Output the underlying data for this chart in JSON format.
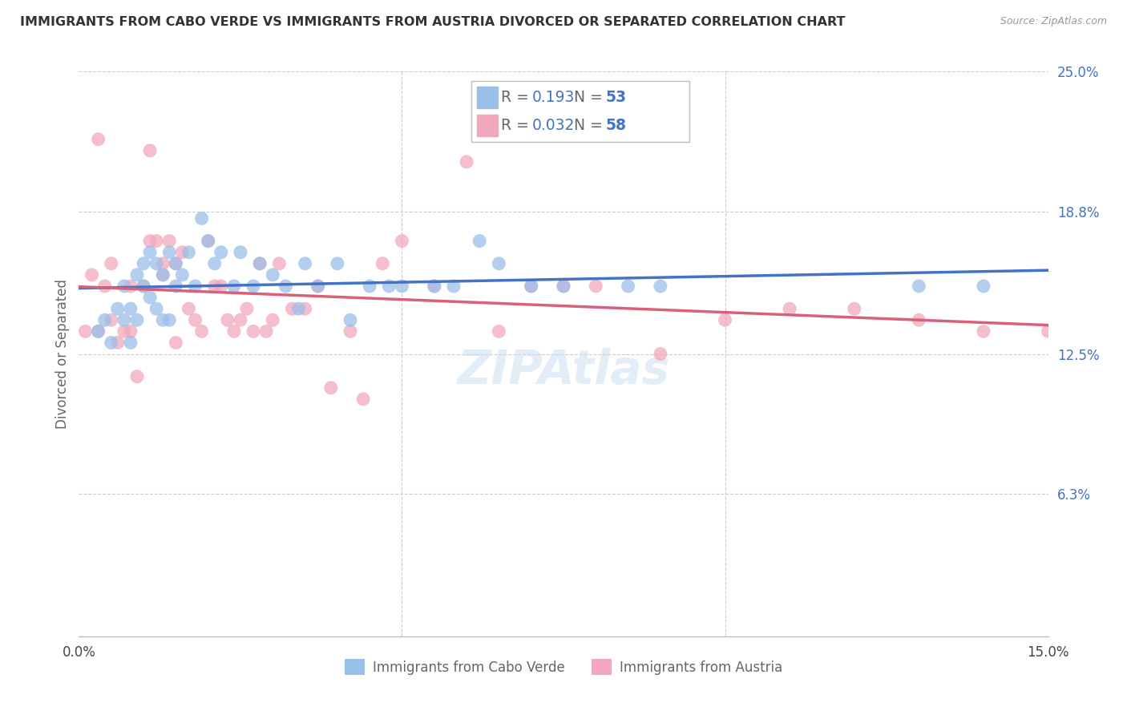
{
  "title": "IMMIGRANTS FROM CABO VERDE VS IMMIGRANTS FROM AUSTRIA DIVORCED OR SEPARATED CORRELATION CHART",
  "source": "Source: ZipAtlas.com",
  "ylabel": "Divorced or Separated",
  "xmin": 0.0,
  "xmax": 0.15,
  "ymin": 0.0,
  "ymax": 0.25,
  "ytick_vals": [
    0.063,
    0.125,
    0.188,
    0.25
  ],
  "ytick_labels": [
    "6.3%",
    "12.5%",
    "18.8%",
    "25.0%"
  ],
  "xtick_vals": [
    0.0,
    0.05,
    0.1,
    0.15
  ],
  "xtick_labels": [
    "0.0%",
    "",
    "",
    "15.0%"
  ],
  "cabo_verde_R": "0.193",
  "cabo_verde_N": "53",
  "austria_R": "0.032",
  "austria_N": "58",
  "cabo_verde_dot_color": "#9ABFE8",
  "austria_dot_color": "#F2A8BC",
  "cabo_verde_line_color": "#4472C4",
  "austria_line_color": "#D9607A",
  "legend_color": "#4472C4",
  "legend_label_cabo": "Immigrants from Cabo Verde",
  "legend_label_austria": "Immigrants from Austria",
  "watermark": "ZIPAtlas",
  "cabo_verde_x": [
    0.003,
    0.004,
    0.005,
    0.006,
    0.007,
    0.007,
    0.008,
    0.008,
    0.009,
    0.009,
    0.01,
    0.01,
    0.011,
    0.011,
    0.012,
    0.012,
    0.013,
    0.013,
    0.014,
    0.014,
    0.015,
    0.015,
    0.016,
    0.017,
    0.018,
    0.019,
    0.02,
    0.021,
    0.022,
    0.024,
    0.025,
    0.027,
    0.028,
    0.03,
    0.032,
    0.034,
    0.035,
    0.037,
    0.04,
    0.042,
    0.045,
    0.048,
    0.05,
    0.055,
    0.058,
    0.062,
    0.065,
    0.07,
    0.075,
    0.085,
    0.09,
    0.13,
    0.14
  ],
  "cabo_verde_y": [
    0.135,
    0.14,
    0.13,
    0.145,
    0.14,
    0.155,
    0.145,
    0.13,
    0.16,
    0.14,
    0.165,
    0.155,
    0.17,
    0.15,
    0.165,
    0.145,
    0.16,
    0.14,
    0.17,
    0.14,
    0.165,
    0.155,
    0.16,
    0.17,
    0.155,
    0.185,
    0.175,
    0.165,
    0.17,
    0.155,
    0.17,
    0.155,
    0.165,
    0.16,
    0.155,
    0.145,
    0.165,
    0.155,
    0.165,
    0.14,
    0.155,
    0.155,
    0.155,
    0.155,
    0.155,
    0.175,
    0.165,
    0.155,
    0.155,
    0.155,
    0.155,
    0.155,
    0.155
  ],
  "austria_x": [
    0.001,
    0.002,
    0.003,
    0.003,
    0.004,
    0.005,
    0.005,
    0.006,
    0.007,
    0.008,
    0.008,
    0.009,
    0.01,
    0.011,
    0.011,
    0.012,
    0.013,
    0.013,
    0.014,
    0.015,
    0.015,
    0.016,
    0.017,
    0.018,
    0.019,
    0.02,
    0.021,
    0.022,
    0.023,
    0.024,
    0.025,
    0.026,
    0.027,
    0.028,
    0.029,
    0.03,
    0.031,
    0.033,
    0.035,
    0.037,
    0.039,
    0.042,
    0.044,
    0.047,
    0.05,
    0.055,
    0.06,
    0.065,
    0.07,
    0.075,
    0.08,
    0.09,
    0.1,
    0.11,
    0.12,
    0.13,
    0.14,
    0.15
  ],
  "austria_y": [
    0.135,
    0.16,
    0.135,
    0.22,
    0.155,
    0.14,
    0.165,
    0.13,
    0.135,
    0.135,
    0.155,
    0.115,
    0.155,
    0.215,
    0.175,
    0.175,
    0.16,
    0.165,
    0.175,
    0.13,
    0.165,
    0.17,
    0.145,
    0.14,
    0.135,
    0.175,
    0.155,
    0.155,
    0.14,
    0.135,
    0.14,
    0.145,
    0.135,
    0.165,
    0.135,
    0.14,
    0.165,
    0.145,
    0.145,
    0.155,
    0.11,
    0.135,
    0.105,
    0.165,
    0.175,
    0.155,
    0.21,
    0.135,
    0.155,
    0.155,
    0.155,
    0.125,
    0.14,
    0.145,
    0.145,
    0.14,
    0.135,
    0.135
  ]
}
